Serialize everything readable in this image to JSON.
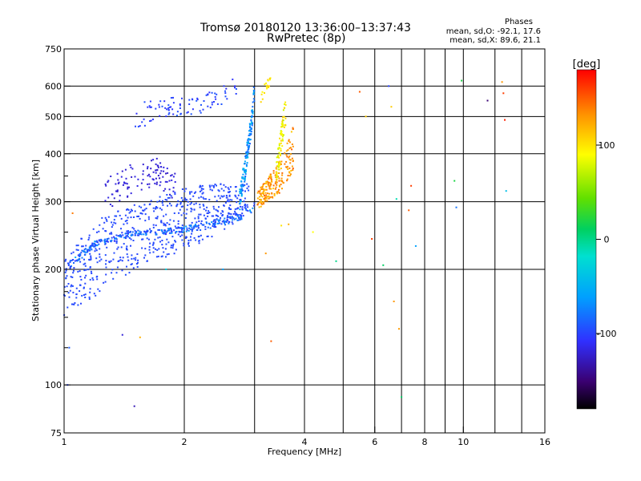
{
  "header": {
    "title": "Tromsø 20180120 13:36:00–13:37:43",
    "subtitle": "RwPretec (8p)"
  },
  "phases": {
    "title": "Phases",
    "line_o": "mean, sd,O: -92.1, 17.6",
    "line_x": "mean, sd,X:  89.6, 21.1"
  },
  "colorbar": {
    "label": "[deg]",
    "range": [
      -180,
      180
    ],
    "ticks": [
      -100,
      0,
      100
    ]
  },
  "chart_data": {
    "type": "scatter",
    "xlabel": "Frequency [MHz]",
    "ylabel": "Stationary phase Virtual Height [km]",
    "xscale": "log",
    "yscale": "log",
    "xlim": [
      1,
      16
    ],
    "ylim": [
      75,
      750
    ],
    "xticks": [
      1,
      2,
      4,
      6,
      8,
      10,
      16
    ],
    "xticks_minor": [
      3,
      5,
      7,
      9,
      12,
      14
    ],
    "yticks": [
      75,
      100,
      200,
      300,
      400,
      500,
      600,
      750
    ],
    "yticks_minor": [
      125,
      150,
      175,
      250,
      350
    ],
    "grid": true,
    "color_quantity": "phase [deg]",
    "traces": [
      {
        "type": "band",
        "f": [
          1.0,
          1.2,
          1.5,
          1.8,
          2.1,
          2.4,
          2.7,
          2.9
        ],
        "h_lo": [
          150,
          170,
          200,
          215,
          230,
          245,
          265,
          280
        ],
        "h_hi": [
          215,
          270,
          295,
          315,
          330,
          335,
          330,
          335
        ],
        "phase": [
          -95,
          -100
        ],
        "n": 650
      },
      {
        "type": "band",
        "f": [
          1.02,
          1.2,
          1.5,
          1.8,
          2.1,
          2.5,
          2.8,
          3.0
        ],
        "h_lo": [
          198,
          230,
          245,
          247,
          250,
          260,
          270,
          285
        ],
        "h_hi": [
          208,
          238,
          252,
          255,
          262,
          272,
          285,
          298
        ],
        "phase": [
          -60,
          -110
        ],
        "n": 260
      },
      {
        "type": "band",
        "f": [
          1.25,
          1.5,
          1.7,
          1.9
        ],
        "h_lo": [
          280,
          315,
          330,
          300
        ],
        "h_hi": [
          340,
          380,
          390,
          360
        ],
        "phase": [
          -115,
          -125
        ],
        "n": 110
      },
      {
        "type": "band",
        "f": [
          1.5,
          1.8,
          2.1,
          2.4,
          2.7
        ],
        "h_lo": [
          460,
          500,
          500,
          530,
          560
        ],
        "h_hi": [
          540,
          560,
          560,
          600,
          640
        ],
        "phase": [
          -90,
          -110
        ],
        "n": 90
      },
      {
        "type": "band",
        "f": [
          2.75,
          2.85,
          2.95,
          3.0
        ],
        "h_lo": [
          280,
          350,
          450,
          550
        ],
        "h_hi": [
          320,
          400,
          520,
          640
        ],
        "phase": [
          -40,
          -90
        ],
        "n": 140
      },
      {
        "type": "band",
        "f": [
          3.05,
          3.2,
          3.4,
          3.6,
          3.75
        ],
        "h_lo": [
          285,
          300,
          310,
          330,
          360
        ],
        "h_hi": [
          320,
          340,
          370,
          420,
          480
        ],
        "phase": [
          110,
          150
        ],
        "n": 200
      },
      {
        "type": "band",
        "f": [
          3.4,
          3.5,
          3.6
        ],
        "h_lo": [
          330,
          400,
          480
        ],
        "h_hi": [
          380,
          470,
          580
        ],
        "phase": [
          70,
          110
        ],
        "n": 80
      },
      {
        "type": "band",
        "f": [
          3.1,
          3.2,
          3.3
        ],
        "h_lo": [
          520,
          580,
          600
        ],
        "h_hi": [
          560,
          620,
          640
        ],
        "phase": [
          90,
          110
        ],
        "n": 18
      },
      {
        "type": "scatter",
        "f": [
          1.02,
          1.03,
          1.05,
          1.4,
          1.5,
          1.55,
          1.8,
          2.5,
          3.2,
          3.3,
          3.5,
          3.65,
          4.2,
          4.8,
          6.3,
          6.5,
          6.6,
          6.7,
          6.8,
          6.9,
          7.0,
          7.3,
          7.4,
          7.6,
          9.5,
          9.6,
          9.9,
          11.5,
          12.5,
          12.6,
          12.7,
          12.8,
          5.9,
          5.5,
          5.7
        ],
        "h": [
          100,
          125,
          280,
          135,
          88,
          133,
          200,
          200,
          220,
          130,
          260,
          262,
          250,
          210,
          205,
          600,
          530,
          165,
          305,
          140,
          93,
          285,
          330,
          230,
          340,
          290,
          620,
          550,
          615,
          575,
          490,
          320,
          240,
          580,
          500
        ],
        "phase": [
          -100,
          -90,
          140,
          -120,
          -130,
          120,
          -30,
          -60,
          130,
          150,
          100,
          120,
          90,
          0,
          10,
          -100,
          110,
          130,
          -10,
          130,
          10,
          150,
          160,
          -60,
          20,
          -80,
          20,
          -150,
          130,
          160,
          170,
          -40,
          160,
          150,
          110
        ]
      }
    ]
  }
}
